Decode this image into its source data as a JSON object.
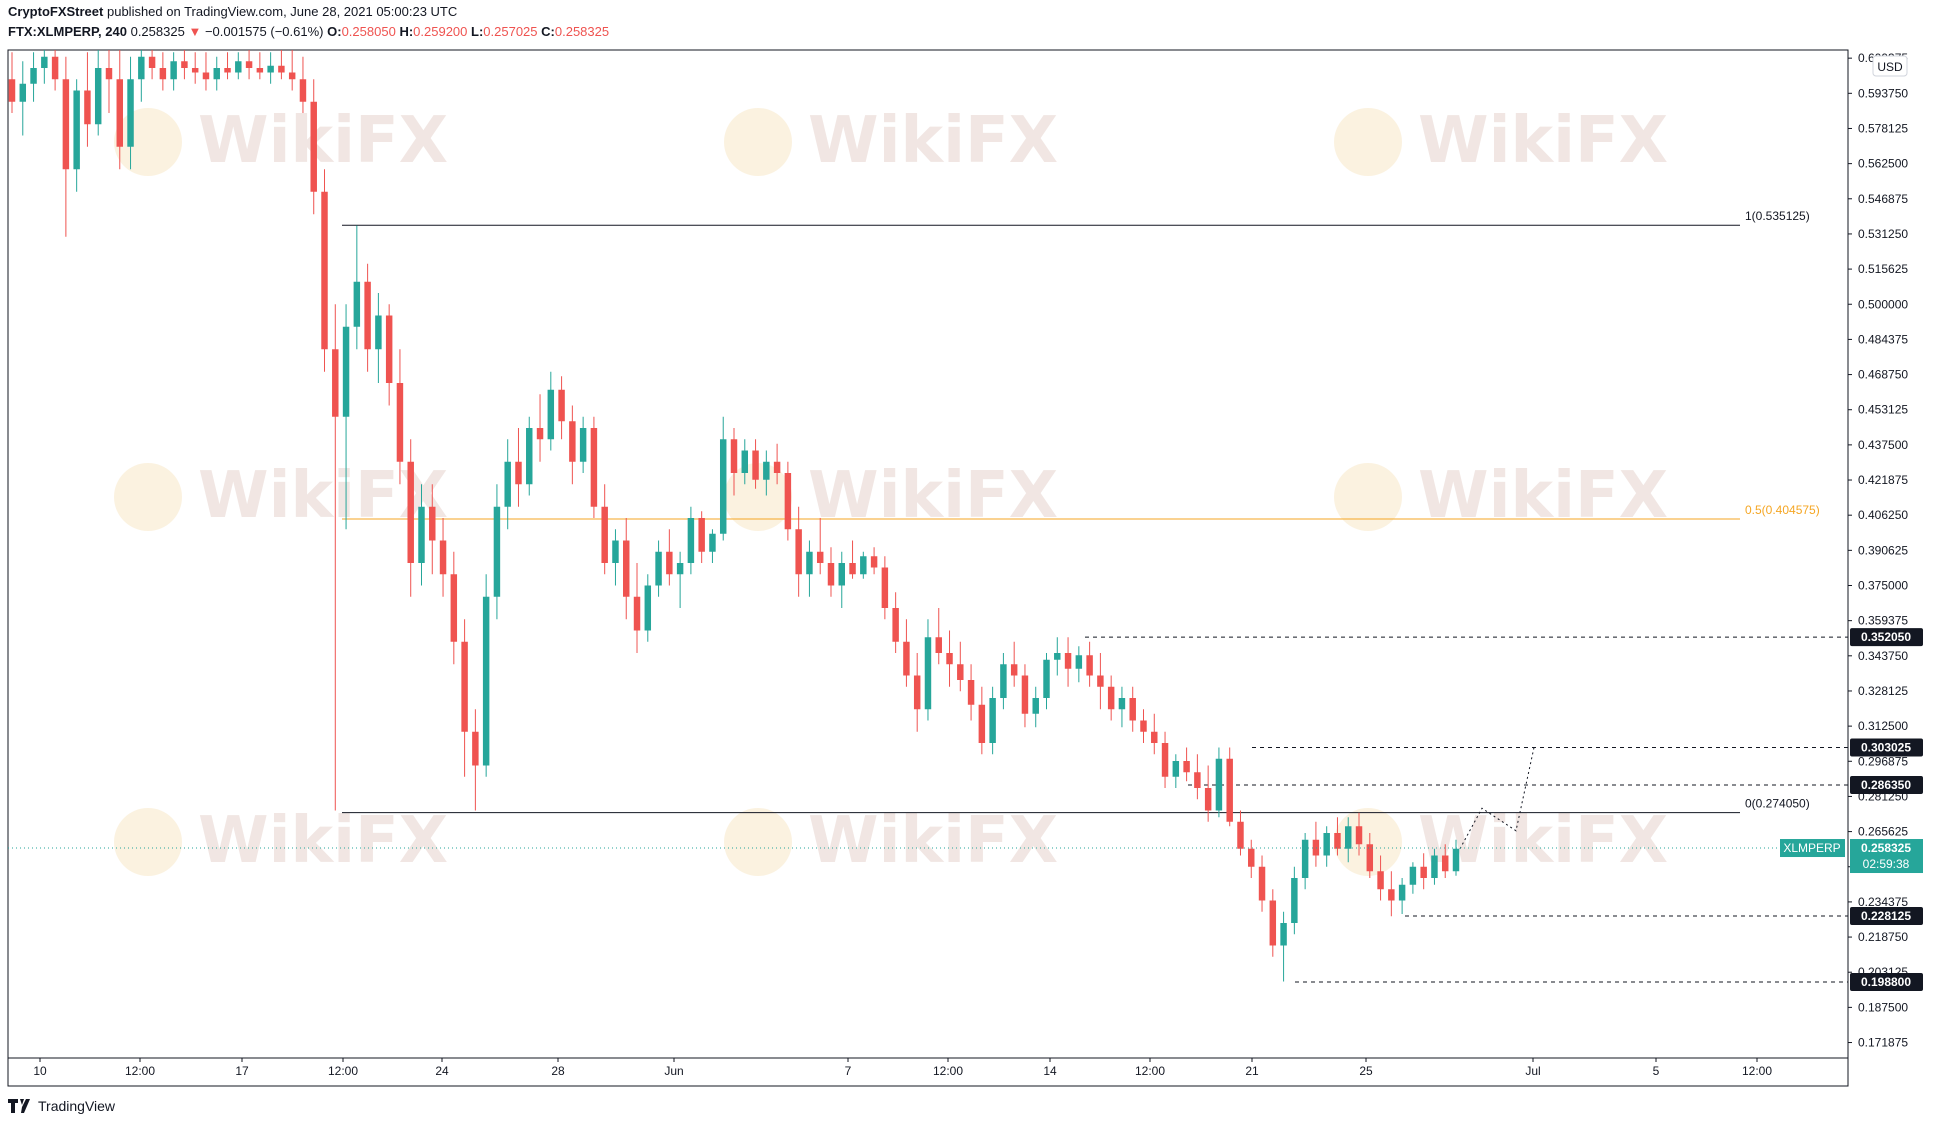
{
  "header": {
    "publisher": "CryptoFXStreet",
    "published_text": "published on TradingView.com, June 28, 2021 05:00:23 UTC",
    "symbol": "FTX:XLMPERP, 240",
    "last": "0.258325",
    "change": "−0.001575 (−0.61%)",
    "o_label": "O:",
    "o_value": "0.258050",
    "h_label": "H:",
    "h_value": "0.259200",
    "l_label": "L:",
    "l_value": "0.257025",
    "c_label": "C:",
    "c_value": "0.258325"
  },
  "currency_badge": "USD",
  "footer_brand": "TradingView",
  "watermark_text": "WikiFX",
  "colors": {
    "up": "#26a69a",
    "down": "#ef5350",
    "fib_mid": "#f5a623",
    "fib_line": "#131722",
    "price_tag": "#26a69a",
    "label_bg": "#131722"
  },
  "chart_data": {
    "type": "candlestick",
    "y_axis": {
      "ticks": [
        "0.609375",
        "0.593750",
        "0.578125",
        "0.562500",
        "0.546875",
        "0.531250",
        "0.515625",
        "0.500000",
        "0.484375",
        "0.468750",
        "0.453125",
        "0.437500",
        "0.421875",
        "0.406250",
        "0.390625",
        "0.375000",
        "0.359375",
        "0.343750",
        "0.328125",
        "0.312500",
        "0.296875",
        "0.281250",
        "0.265625",
        "0.250000",
        "0.234375",
        "0.218750",
        "0.203125",
        "0.187500",
        "0.171875"
      ],
      "ylim": [
        0.165,
        0.613
      ]
    },
    "x_axis": {
      "ticks": [
        "10",
        "12:00",
        "17",
        "12:00",
        "24",
        "28",
        "Jun",
        "7",
        "12:00",
        "14",
        "12:00",
        "21",
        "25",
        "Jul",
        "5",
        "12:00"
      ]
    },
    "fib_levels": [
      {
        "label": "1(0.535125)",
        "value": 0.535125
      },
      {
        "label": "0.5(0.404575)",
        "value": 0.404575
      },
      {
        "label": "0(0.274050)",
        "value": 0.27405
      }
    ],
    "levels": [
      {
        "label": "0.352050",
        "value": 0.35205
      },
      {
        "label": "0.303025",
        "value": 0.303025
      },
      {
        "label": "0.286350",
        "value": 0.28635
      },
      {
        "label": "0.228125",
        "value": 0.228125
      },
      {
        "label": "0.198800",
        "value": 0.1988
      }
    ],
    "current_price": {
      "symbol": "XLMPERP",
      "value": 0.258325,
      "label": "0.258325",
      "countdown": "02:59:38"
    },
    "projection": [
      0.258,
      0.276,
      0.266,
      0.303
    ],
    "candles": [
      {
        "o": 0.6,
        "h": 0.612,
        "l": 0.585,
        "c": 0.59
      },
      {
        "o": 0.59,
        "h": 0.608,
        "l": 0.575,
        "c": 0.598
      },
      {
        "o": 0.598,
        "h": 0.612,
        "l": 0.59,
        "c": 0.605
      },
      {
        "o": 0.605,
        "h": 0.613,
        "l": 0.598,
        "c": 0.61
      },
      {
        "o": 0.61,
        "h": 0.613,
        "l": 0.595,
        "c": 0.6
      },
      {
        "o": 0.6,
        "h": 0.61,
        "l": 0.53,
        "c": 0.56
      },
      {
        "o": 0.56,
        "h": 0.6,
        "l": 0.55,
        "c": 0.595
      },
      {
        "o": 0.595,
        "h": 0.612,
        "l": 0.57,
        "c": 0.58
      },
      {
        "o": 0.58,
        "h": 0.613,
        "l": 0.575,
        "c": 0.605
      },
      {
        "o": 0.605,
        "h": 0.613,
        "l": 0.585,
        "c": 0.6
      },
      {
        "o": 0.6,
        "h": 0.613,
        "l": 0.56,
        "c": 0.57
      },
      {
        "o": 0.57,
        "h": 0.61,
        "l": 0.56,
        "c": 0.6
      },
      {
        "o": 0.6,
        "h": 0.613,
        "l": 0.59,
        "c": 0.61
      },
      {
        "o": 0.61,
        "h": 0.613,
        "l": 0.6,
        "c": 0.605
      },
      {
        "o": 0.605,
        "h": 0.612,
        "l": 0.595,
        "c": 0.6
      },
      {
        "o": 0.6,
        "h": 0.612,
        "l": 0.595,
        "c": 0.608
      },
      {
        "o": 0.608,
        "h": 0.613,
        "l": 0.6,
        "c": 0.605
      },
      {
        "o": 0.605,
        "h": 0.612,
        "l": 0.598,
        "c": 0.603
      },
      {
        "o": 0.603,
        "h": 0.612,
        "l": 0.595,
        "c": 0.6
      },
      {
        "o": 0.6,
        "h": 0.61,
        "l": 0.595,
        "c": 0.605
      },
      {
        "o": 0.605,
        "h": 0.612,
        "l": 0.6,
        "c": 0.603
      },
      {
        "o": 0.603,
        "h": 0.612,
        "l": 0.6,
        "c": 0.608
      },
      {
        "o": 0.608,
        "h": 0.613,
        "l": 0.6,
        "c": 0.605
      },
      {
        "o": 0.605,
        "h": 0.612,
        "l": 0.6,
        "c": 0.603
      },
      {
        "o": 0.603,
        "h": 0.612,
        "l": 0.598,
        "c": 0.606
      },
      {
        "o": 0.606,
        "h": 0.613,
        "l": 0.6,
        "c": 0.603
      },
      {
        "o": 0.603,
        "h": 0.613,
        "l": 0.595,
        "c": 0.6
      },
      {
        "o": 0.6,
        "h": 0.61,
        "l": 0.585,
        "c": 0.59
      },
      {
        "o": 0.59,
        "h": 0.6,
        "l": 0.54,
        "c": 0.55
      },
      {
        "o": 0.55,
        "h": 0.56,
        "l": 0.47,
        "c": 0.48
      },
      {
        "o": 0.48,
        "h": 0.5,
        "l": 0.275,
        "c": 0.45
      },
      {
        "o": 0.45,
        "h": 0.5,
        "l": 0.4,
        "c": 0.49
      },
      {
        "o": 0.49,
        "h": 0.535,
        "l": 0.48,
        "c": 0.51
      },
      {
        "o": 0.51,
        "h": 0.518,
        "l": 0.47,
        "c": 0.48
      },
      {
        "o": 0.48,
        "h": 0.505,
        "l": 0.465,
        "c": 0.495
      },
      {
        "o": 0.495,
        "h": 0.5,
        "l": 0.455,
        "c": 0.465
      },
      {
        "o": 0.465,
        "h": 0.48,
        "l": 0.42,
        "c": 0.43
      },
      {
        "o": 0.43,
        "h": 0.44,
        "l": 0.37,
        "c": 0.385
      },
      {
        "o": 0.385,
        "h": 0.42,
        "l": 0.375,
        "c": 0.41
      },
      {
        "o": 0.41,
        "h": 0.42,
        "l": 0.38,
        "c": 0.395
      },
      {
        "o": 0.395,
        "h": 0.405,
        "l": 0.37,
        "c": 0.38
      },
      {
        "o": 0.38,
        "h": 0.39,
        "l": 0.34,
        "c": 0.35
      },
      {
        "o": 0.35,
        "h": 0.36,
        "l": 0.29,
        "c": 0.31
      },
      {
        "o": 0.31,
        "h": 0.32,
        "l": 0.275,
        "c": 0.295
      },
      {
        "o": 0.295,
        "h": 0.38,
        "l": 0.29,
        "c": 0.37
      },
      {
        "o": 0.37,
        "h": 0.42,
        "l": 0.36,
        "c": 0.41
      },
      {
        "o": 0.41,
        "h": 0.44,
        "l": 0.4,
        "c": 0.43
      },
      {
        "o": 0.43,
        "h": 0.445,
        "l": 0.41,
        "c": 0.42
      },
      {
        "o": 0.42,
        "h": 0.45,
        "l": 0.415,
        "c": 0.445
      },
      {
        "o": 0.445,
        "h": 0.46,
        "l": 0.43,
        "c": 0.44
      },
      {
        "o": 0.44,
        "h": 0.47,
        "l": 0.435,
        "c": 0.462
      },
      {
        "o": 0.462,
        "h": 0.468,
        "l": 0.44,
        "c": 0.448
      },
      {
        "o": 0.448,
        "h": 0.455,
        "l": 0.42,
        "c": 0.43
      },
      {
        "o": 0.43,
        "h": 0.45,
        "l": 0.425,
        "c": 0.445
      },
      {
        "o": 0.445,
        "h": 0.45,
        "l": 0.405,
        "c": 0.41
      },
      {
        "o": 0.41,
        "h": 0.42,
        "l": 0.38,
        "c": 0.385
      },
      {
        "o": 0.385,
        "h": 0.4,
        "l": 0.375,
        "c": 0.395
      },
      {
        "o": 0.395,
        "h": 0.405,
        "l": 0.36,
        "c": 0.37
      },
      {
        "o": 0.37,
        "h": 0.385,
        "l": 0.345,
        "c": 0.355
      },
      {
        "o": 0.355,
        "h": 0.38,
        "l": 0.35,
        "c": 0.375
      },
      {
        "o": 0.375,
        "h": 0.395,
        "l": 0.37,
        "c": 0.39
      },
      {
        "o": 0.39,
        "h": 0.4,
        "l": 0.375,
        "c": 0.38
      },
      {
        "o": 0.38,
        "h": 0.39,
        "l": 0.365,
        "c": 0.385
      },
      {
        "o": 0.385,
        "h": 0.41,
        "l": 0.38,
        "c": 0.405
      },
      {
        "o": 0.405,
        "h": 0.408,
        "l": 0.385,
        "c": 0.39
      },
      {
        "o": 0.39,
        "h": 0.4,
        "l": 0.385,
        "c": 0.398
      },
      {
        "o": 0.398,
        "h": 0.45,
        "l": 0.395,
        "c": 0.44
      },
      {
        "o": 0.44,
        "h": 0.445,
        "l": 0.415,
        "c": 0.425
      },
      {
        "o": 0.425,
        "h": 0.44,
        "l": 0.42,
        "c": 0.435
      },
      {
        "o": 0.435,
        "h": 0.44,
        "l": 0.418,
        "c": 0.422
      },
      {
        "o": 0.422,
        "h": 0.435,
        "l": 0.415,
        "c": 0.43
      },
      {
        "o": 0.43,
        "h": 0.438,
        "l": 0.42,
        "c": 0.425
      },
      {
        "o": 0.425,
        "h": 0.43,
        "l": 0.395,
        "c": 0.4
      },
      {
        "o": 0.4,
        "h": 0.41,
        "l": 0.37,
        "c": 0.38
      },
      {
        "o": 0.38,
        "h": 0.395,
        "l": 0.37,
        "c": 0.39
      },
      {
        "o": 0.39,
        "h": 0.405,
        "l": 0.38,
        "c": 0.385
      },
      {
        "o": 0.385,
        "h": 0.392,
        "l": 0.37,
        "c": 0.375
      },
      {
        "o": 0.375,
        "h": 0.39,
        "l": 0.365,
        "c": 0.385
      },
      {
        "o": 0.385,
        "h": 0.395,
        "l": 0.378,
        "c": 0.38
      },
      {
        "o": 0.38,
        "h": 0.39,
        "l": 0.378,
        "c": 0.388
      },
      {
        "o": 0.388,
        "h": 0.392,
        "l": 0.38,
        "c": 0.383
      },
      {
        "o": 0.383,
        "h": 0.388,
        "l": 0.36,
        "c": 0.365
      },
      {
        "o": 0.365,
        "h": 0.372,
        "l": 0.345,
        "c": 0.35
      },
      {
        "o": 0.35,
        "h": 0.36,
        "l": 0.33,
        "c": 0.335
      },
      {
        "o": 0.335,
        "h": 0.345,
        "l": 0.31,
        "c": 0.32
      },
      {
        "o": 0.32,
        "h": 0.36,
        "l": 0.315,
        "c": 0.352
      },
      {
        "o": 0.352,
        "h": 0.365,
        "l": 0.34,
        "c": 0.345
      },
      {
        "o": 0.345,
        "h": 0.355,
        "l": 0.33,
        "c": 0.34
      },
      {
        "o": 0.34,
        "h": 0.35,
        "l": 0.328,
        "c": 0.333
      },
      {
        "o": 0.333,
        "h": 0.34,
        "l": 0.315,
        "c": 0.322
      },
      {
        "o": 0.322,
        "h": 0.33,
        "l": 0.3,
        "c": 0.305
      },
      {
        "o": 0.305,
        "h": 0.33,
        "l": 0.3,
        "c": 0.325
      },
      {
        "o": 0.325,
        "h": 0.345,
        "l": 0.32,
        "c": 0.34
      },
      {
        "o": 0.34,
        "h": 0.35,
        "l": 0.33,
        "c": 0.335
      },
      {
        "o": 0.335,
        "h": 0.34,
        "l": 0.312,
        "c": 0.318
      },
      {
        "o": 0.318,
        "h": 0.33,
        "l": 0.312,
        "c": 0.325
      },
      {
        "o": 0.325,
        "h": 0.345,
        "l": 0.32,
        "c": 0.342
      },
      {
        "o": 0.342,
        "h": 0.352,
        "l": 0.335,
        "c": 0.345
      },
      {
        "o": 0.345,
        "h": 0.352,
        "l": 0.33,
        "c": 0.338
      },
      {
        "o": 0.338,
        "h": 0.348,
        "l": 0.332,
        "c": 0.344
      },
      {
        "o": 0.344,
        "h": 0.35,
        "l": 0.33,
        "c": 0.335
      },
      {
        "o": 0.335,
        "h": 0.345,
        "l": 0.32,
        "c": 0.33
      },
      {
        "o": 0.33,
        "h": 0.335,
        "l": 0.315,
        "c": 0.32
      },
      {
        "o": 0.32,
        "h": 0.33,
        "l": 0.312,
        "c": 0.325
      },
      {
        "o": 0.325,
        "h": 0.33,
        "l": 0.31,
        "c": 0.315
      },
      {
        "o": 0.315,
        "h": 0.32,
        "l": 0.305,
        "c": 0.31
      },
      {
        "o": 0.31,
        "h": 0.318,
        "l": 0.3,
        "c": 0.305
      },
      {
        "o": 0.305,
        "h": 0.31,
        "l": 0.285,
        "c": 0.29
      },
      {
        "o": 0.29,
        "h": 0.3,
        "l": 0.285,
        "c": 0.297
      },
      {
        "o": 0.297,
        "h": 0.303,
        "l": 0.288,
        "c": 0.292
      },
      {
        "o": 0.292,
        "h": 0.3,
        "l": 0.28,
        "c": 0.285
      },
      {
        "o": 0.285,
        "h": 0.295,
        "l": 0.27,
        "c": 0.275
      },
      {
        "o": 0.275,
        "h": 0.303,
        "l": 0.272,
        "c": 0.298
      },
      {
        "o": 0.298,
        "h": 0.303,
        "l": 0.268,
        "c": 0.27
      },
      {
        "o": 0.27,
        "h": 0.275,
        "l": 0.255,
        "c": 0.258
      },
      {
        "o": 0.258,
        "h": 0.262,
        "l": 0.245,
        "c": 0.25
      },
      {
        "o": 0.25,
        "h": 0.255,
        "l": 0.23,
        "c": 0.235
      },
      {
        "o": 0.235,
        "h": 0.24,
        "l": 0.21,
        "c": 0.215
      },
      {
        "o": 0.215,
        "h": 0.23,
        "l": 0.199,
        "c": 0.225
      },
      {
        "o": 0.225,
        "h": 0.25,
        "l": 0.22,
        "c": 0.245
      },
      {
        "o": 0.245,
        "h": 0.265,
        "l": 0.24,
        "c": 0.262
      },
      {
        "o": 0.262,
        "h": 0.27,
        "l": 0.25,
        "c": 0.255
      },
      {
        "o": 0.255,
        "h": 0.268,
        "l": 0.25,
        "c": 0.265
      },
      {
        "o": 0.265,
        "h": 0.272,
        "l": 0.255,
        "c": 0.258
      },
      {
        "o": 0.258,
        "h": 0.272,
        "l": 0.252,
        "c": 0.268
      },
      {
        "o": 0.268,
        "h": 0.274,
        "l": 0.255,
        "c": 0.26
      },
      {
        "o": 0.26,
        "h": 0.265,
        "l": 0.245,
        "c": 0.248
      },
      {
        "o": 0.248,
        "h": 0.255,
        "l": 0.235,
        "c": 0.24
      },
      {
        "o": 0.24,
        "h": 0.248,
        "l": 0.228,
        "c": 0.235
      },
      {
        "o": 0.235,
        "h": 0.245,
        "l": 0.229,
        "c": 0.242
      },
      {
        "o": 0.242,
        "h": 0.252,
        "l": 0.238,
        "c": 0.25
      },
      {
        "o": 0.25,
        "h": 0.256,
        "l": 0.24,
        "c": 0.245
      },
      {
        "o": 0.245,
        "h": 0.258,
        "l": 0.242,
        "c": 0.255
      },
      {
        "o": 0.255,
        "h": 0.26,
        "l": 0.245,
        "c": 0.248
      },
      {
        "o": 0.248,
        "h": 0.262,
        "l": 0.246,
        "c": 0.258
      }
    ]
  }
}
